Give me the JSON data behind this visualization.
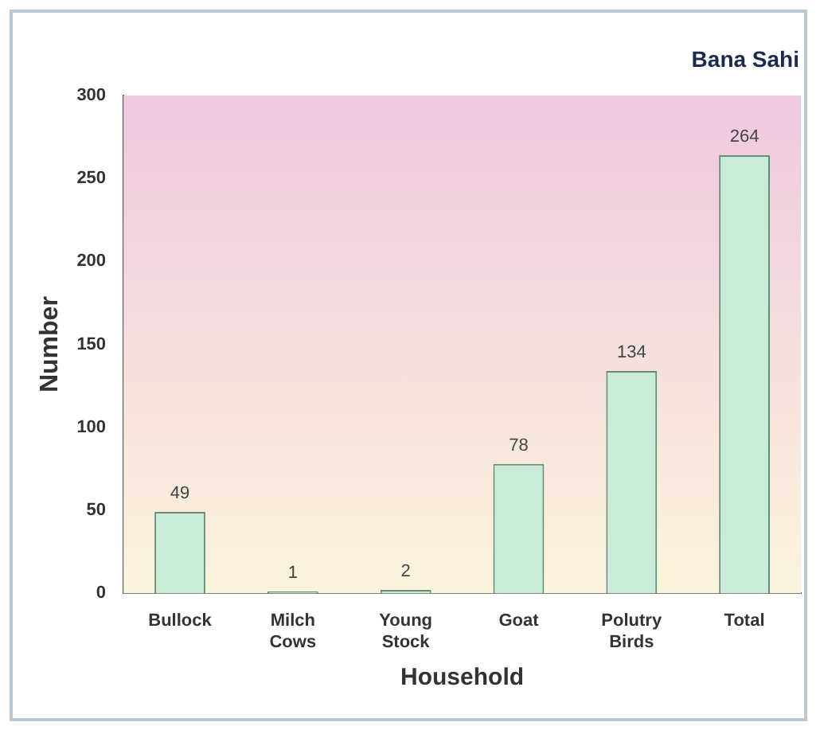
{
  "chart_data": {
    "type": "bar",
    "title": "Bana Sahi",
    "xlabel": "Household",
    "ylabel": "Number",
    "categories": [
      "Bullock",
      "Milch Cows",
      "Young Stock",
      "Goat",
      "Polutry Birds",
      "Total"
    ],
    "values": [
      49,
      1,
      2,
      78,
      134,
      264
    ],
    "color": "#c9ecd9",
    "ylim": [
      0,
      300
    ],
    "yticks": [
      0,
      50,
      100,
      150,
      200,
      250,
      300
    ],
    "grid": false,
    "legend": false,
    "data_labels": true
  }
}
